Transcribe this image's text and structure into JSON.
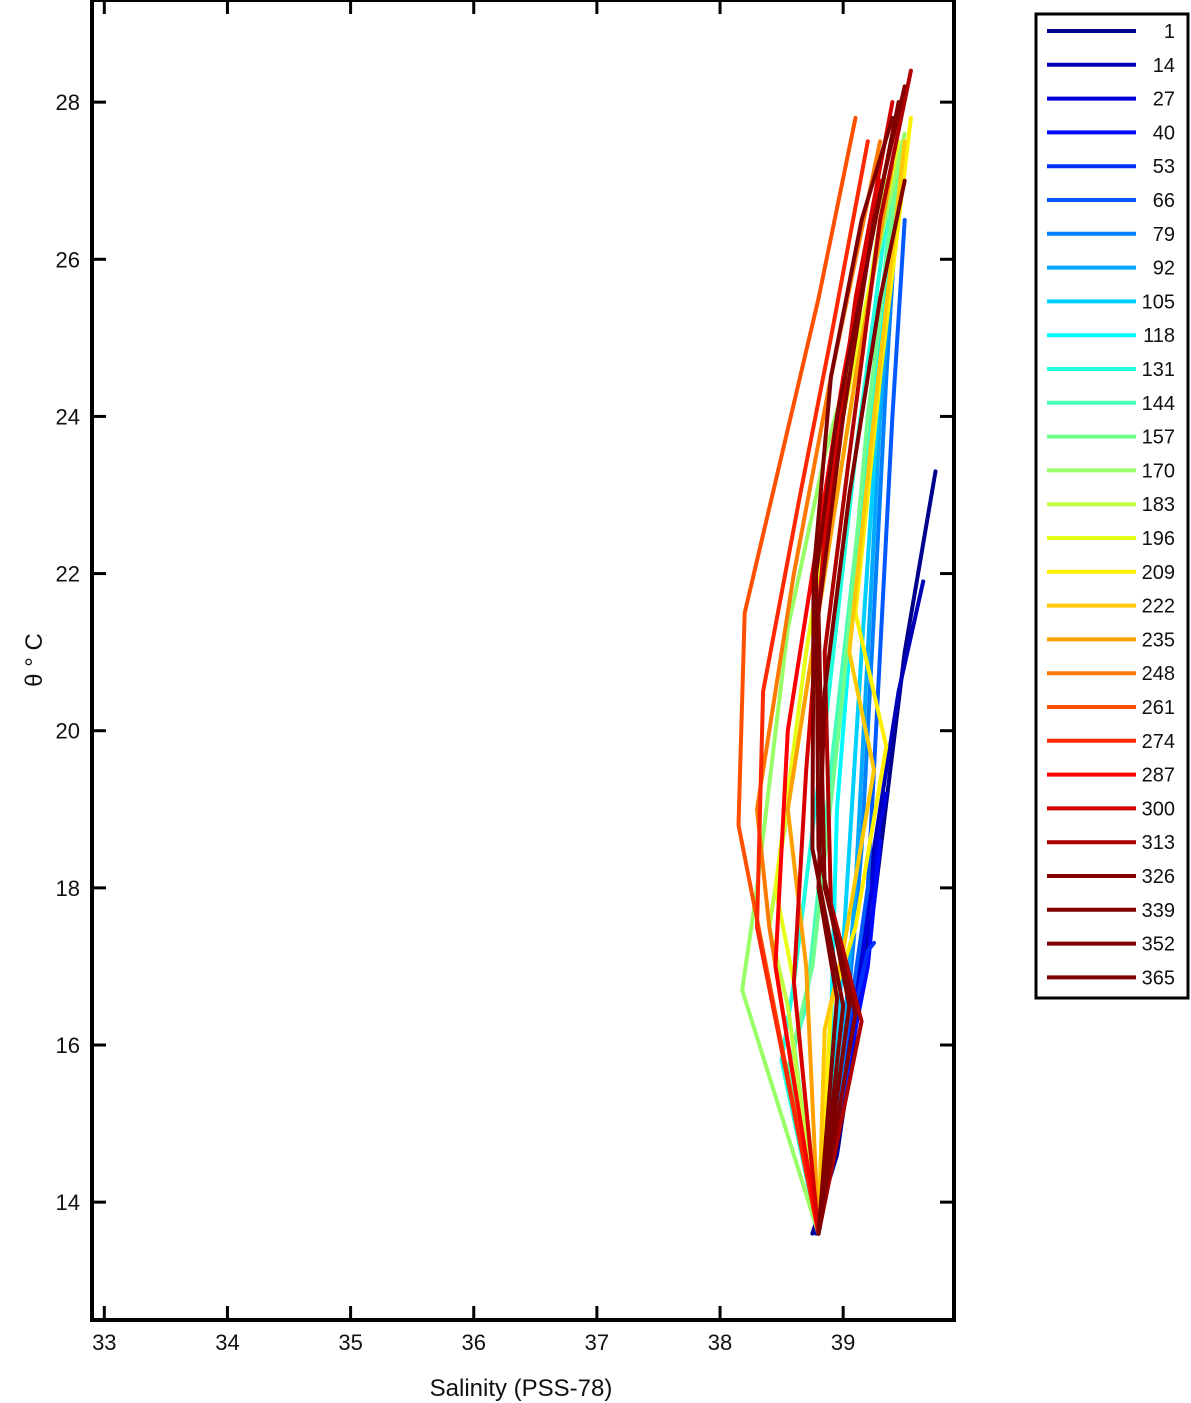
{
  "chart_data": {
    "type": "line",
    "title": "",
    "xlabel": "Salinity (PSS-78)",
    "ylabel": "θ ° C",
    "xlim": [
      32.9,
      39.9
    ],
    "ylim": [
      12.5,
      29.3
    ],
    "xticks": [
      33,
      34,
      35,
      36,
      37,
      38,
      39
    ],
    "yticks": [
      14,
      16,
      18,
      20,
      22,
      24,
      26,
      28
    ],
    "grid": false,
    "legend_position": "outside-right",
    "legend_entries": [
      "1",
      "14",
      "27",
      "40",
      "53",
      "66",
      "79",
      "92",
      "105",
      "118",
      "131",
      "144",
      "157",
      "170",
      "183",
      "196",
      "209",
      "222",
      "235",
      "248",
      "261",
      "274",
      "287",
      "300",
      "313",
      "326",
      "339",
      "352",
      "365"
    ],
    "legend_colors": [
      "#00008f",
      "#0000b7",
      "#0000df",
      "#0008ff",
      "#0030ff",
      "#0058ff",
      "#0080ff",
      "#00a8ff",
      "#00d0ff",
      "#00f8ff",
      "#20ffdf",
      "#48ffb7",
      "#70ff8f",
      "#98ff67",
      "#c0ff3f",
      "#e8ff17",
      "#fff000",
      "#ffc800",
      "#ffa000",
      "#ff7800",
      "#ff5000",
      "#ff2800",
      "#ff0000",
      "#d70000",
      "#af0000",
      "#870000",
      "#800000",
      "#800000",
      "#800000"
    ],
    "series": [
      {
        "legend_index": 0,
        "x": [
          38.75,
          38.95,
          39.25,
          39.5,
          39.75
        ],
        "y": [
          13.6,
          14.6,
          17.8,
          21.0,
          23.3
        ]
      },
      {
        "legend_index": 1,
        "x": [
          38.78,
          38.98,
          39.2,
          39.45,
          39.65
        ],
        "y": [
          13.6,
          15.0,
          18.0,
          20.5,
          21.9
        ]
      },
      {
        "legend_index": 2,
        "x": [
          38.8,
          39.0,
          39.15,
          39.3,
          39.35
        ],
        "y": [
          13.6,
          15.5,
          17.0,
          18.8,
          19.2
        ]
      },
      {
        "legend_index": 3,
        "x": [
          38.8,
          39.05,
          39.2,
          39.3
        ],
        "y": [
          13.6,
          15.8,
          17.0,
          18.6
        ]
      },
      {
        "legend_index": 4,
        "x": [
          38.8,
          39.0,
          39.1,
          39.2,
          39.25
        ],
        "y": [
          13.6,
          15.3,
          16.5,
          17.2,
          17.3
        ]
      },
      {
        "legend_index": 5,
        "x": [
          38.8,
          39.0,
          39.2,
          39.3,
          39.4,
          39.5
        ],
        "y": [
          13.6,
          15.8,
          18.0,
          21.0,
          24.0,
          26.5
        ]
      },
      {
        "legend_index": 6,
        "x": [
          38.8,
          39.0,
          39.15,
          39.25,
          39.35,
          39.45
        ],
        "y": [
          13.6,
          15.8,
          18.5,
          21.5,
          24.5,
          27.0
        ]
      },
      {
        "legend_index": 7,
        "x": [
          38.8,
          39.0,
          39.1,
          39.2,
          39.3,
          39.4
        ],
        "y": [
          13.6,
          16.0,
          18.0,
          21.0,
          24.0,
          26.0
        ]
      },
      {
        "legend_index": 8,
        "x": [
          38.8,
          38.95,
          39.05,
          39.15,
          39.3,
          39.5
        ],
        "y": [
          13.6,
          16.0,
          18.5,
          21.0,
          24.5,
          27.5
        ]
      },
      {
        "legend_index": 9,
        "x": [
          38.8,
          38.9,
          38.95,
          39.1,
          39.3,
          39.45
        ],
        "y": [
          13.6,
          16.2,
          19.0,
          22.0,
          25.0,
          27.3
        ]
      },
      {
        "legend_index": 10,
        "x": [
          38.8,
          38.5,
          38.6,
          38.85,
          39.1,
          39.35
        ],
        "y": [
          13.6,
          15.8,
          16.8,
          20.0,
          23.5,
          26.5
        ]
      },
      {
        "legend_index": 11,
        "x": [
          38.8,
          38.55,
          38.7,
          38.9,
          39.15,
          39.4
        ],
        "y": [
          13.6,
          15.7,
          16.5,
          19.5,
          23.0,
          26.8
        ]
      },
      {
        "legend_index": 12,
        "x": [
          38.8,
          38.6,
          38.75,
          39.0,
          39.2,
          39.45
        ],
        "y": [
          13.6,
          16.0,
          17.0,
          20.5,
          24.0,
          27.2
        ]
      },
      {
        "legend_index": 13,
        "x": [
          38.8,
          38.18,
          38.3,
          38.55,
          38.85,
          39.2,
          39.5
        ],
        "y": [
          13.6,
          16.7,
          18.0,
          21.3,
          23.5,
          25.5,
          27.6
        ]
      },
      {
        "legend_index": 14,
        "x": [
          38.8,
          38.55,
          38.4,
          38.7,
          39.0,
          39.35
        ],
        "y": [
          13.6,
          16.5,
          17.5,
          20.5,
          23.5,
          27.0
        ]
      },
      {
        "legend_index": 15,
        "x": [
          38.8,
          38.6,
          38.45,
          38.7,
          39.0,
          39.45
        ],
        "y": [
          13.6,
          16.8,
          18.0,
          21.0,
          24.0,
          27.5
        ]
      },
      {
        "legend_index": 16,
        "x": [
          38.8,
          38.9,
          39.1,
          39.35,
          39.1,
          39.3,
          39.55
        ],
        "y": [
          13.6,
          16.5,
          17.5,
          19.8,
          21.5,
          24.5,
          27.8
        ]
      },
      {
        "legend_index": 17,
        "x": [
          38.8,
          38.85,
          39.0,
          39.25,
          39.05,
          39.25,
          39.5
        ],
        "y": [
          13.6,
          16.2,
          17.2,
          19.5,
          21.0,
          24.0,
          27.5
        ]
      },
      {
        "legend_index": 18,
        "x": [
          38.8,
          38.7,
          38.55,
          38.85,
          39.1,
          39.4
        ],
        "y": [
          13.6,
          17.0,
          19.0,
          22.0,
          24.5,
          27.2
        ]
      },
      {
        "legend_index": 19,
        "x": [
          38.8,
          38.4,
          38.3,
          38.6,
          38.9,
          39.3
        ],
        "y": [
          13.6,
          17.5,
          19.0,
          22.0,
          24.5,
          27.5
        ]
      },
      {
        "legend_index": 20,
        "x": [
          38.8,
          38.15,
          38.2,
          38.5,
          38.8,
          39.1
        ],
        "y": [
          13.6,
          18.8,
          21.5,
          23.5,
          25.5,
          27.8
        ]
      },
      {
        "legend_index": 21,
        "x": [
          38.8,
          38.3,
          38.35,
          38.65,
          38.9,
          39.2
        ],
        "y": [
          13.6,
          17.5,
          20.5,
          23.0,
          25.0,
          27.5
        ]
      },
      {
        "legend_index": 22,
        "x": [
          38.8,
          38.45,
          38.55,
          38.8,
          39.0,
          39.3
        ],
        "y": [
          13.6,
          17.0,
          20.0,
          22.5,
          24.5,
          27.0
        ]
      },
      {
        "legend_index": 23,
        "x": [
          38.8,
          38.6,
          38.7,
          38.85,
          39.1,
          39.4
        ],
        "y": [
          13.6,
          16.8,
          19.5,
          22.5,
          25.5,
          28.0
        ]
      },
      {
        "legend_index": 24,
        "x": [
          38.8,
          39.15,
          38.9,
          38.85,
          39.05,
          39.3,
          39.55
        ],
        "y": [
          13.6,
          16.3,
          17.8,
          21.0,
          23.5,
          26.5,
          28.4
        ]
      },
      {
        "legend_index": 25,
        "x": [
          38.8,
          39.1,
          38.85,
          38.8,
          39.0,
          39.25,
          39.5
        ],
        "y": [
          13.6,
          16.4,
          18.0,
          21.5,
          24.0,
          26.5,
          28.2
        ]
      },
      {
        "legend_index": 26,
        "x": [
          38.8,
          39.05,
          38.8,
          38.78,
          38.95,
          39.2,
          39.45
        ],
        "y": [
          13.6,
          16.5,
          18.5,
          22.0,
          24.0,
          26.0,
          28.0
        ]
      },
      {
        "legend_index": 27,
        "x": [
          38.8,
          39.0,
          38.75,
          38.76,
          38.9,
          39.15,
          39.4
        ],
        "y": [
          13.6,
          16.5,
          18.5,
          22.0,
          24.5,
          26.5,
          27.8
        ]
      },
      {
        "legend_index": 28,
        "x": [
          38.8,
          38.95,
          38.8,
          38.85,
          39.05,
          39.3,
          39.5
        ],
        "y": [
          13.6,
          16.6,
          18.0,
          20.5,
          23.0,
          25.5,
          27.0
        ]
      }
    ]
  }
}
